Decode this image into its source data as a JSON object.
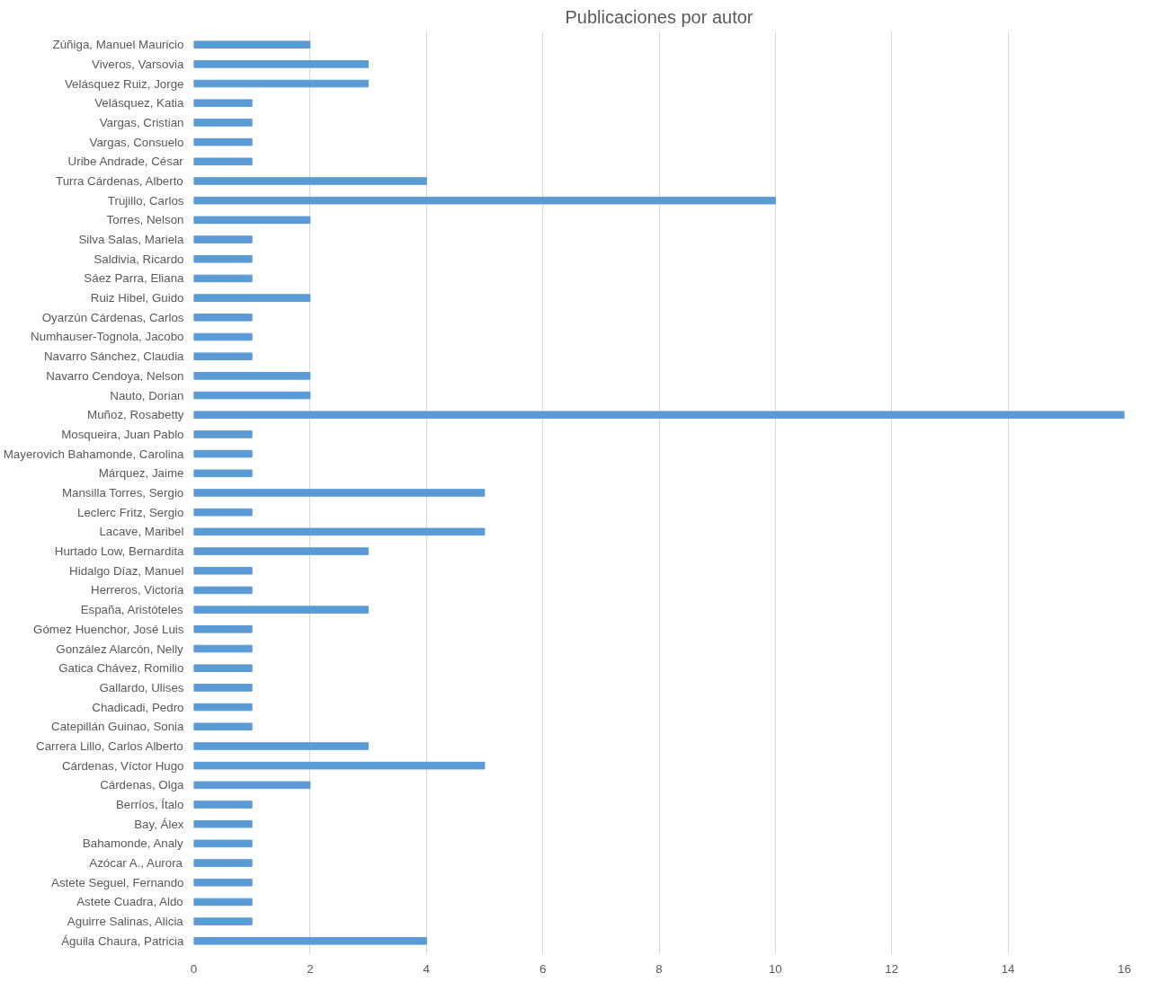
{
  "chart_data": {
    "type": "bar",
    "orientation": "horizontal",
    "title": "Publicaciones por autor",
    "categories": [
      "Zúñiga, Manuel Mauricio",
      "Viveros, Varsovia",
      "Velásquez Ruiz, Jorge",
      "Velásquez, Katia",
      "Vargas, Cristian",
      "Vargas, Consuelo",
      "Uribe Andrade, César",
      "Turra Cárdenas, Alberto",
      "Trujillo, Carlos",
      "Torres, Nelson",
      "Silva Salas, Mariela",
      "Saldivia, Ricardo",
      "Sáez Parra, Eliana",
      "Ruiz Hibel, Guido",
      "Oyarzún Cárdenas, Carlos",
      "Numhauser-Tognola, Jacobo",
      "Navarro Sánchez, Claudia",
      "Navarro Cendoya, Nelson",
      "Nauto, Dorian",
      "Muñoz, Rosabetty",
      "Mosqueira, Juan Pablo",
      "Mayerovich Bahamonde, Carolina",
      "Márquez, Jaime",
      "Mansilla Torres, Sergio",
      "Leclerc Fritz, Sergio",
      "Lacave, Maribel",
      "Hurtado Low, Bernardita",
      "Hidalgo Díaz, Manuel",
      "Herreros, Victoria",
      "España, Aristóteles",
      "Gómez Huenchor, José Luis",
      "González Alarcón, Nelly",
      "Gatica Chávez, Romilio",
      "Gallardo, Ulises",
      "Chadicadi, Pedro",
      "Catepillán Guinao, Sonia",
      "Carrera Lillo, Carlos Alberto",
      "Cárdenas, Víctor Hugo",
      "Cárdenas, Olga",
      "Berríos, Ítalo",
      "Bay, Álex",
      "Bahamonde, Analy",
      "Azócar A., Aurora",
      "Astete Seguel, Fernando",
      "Astete Cuadra, Aldo",
      "Aguirre Salinas, Alicia",
      "Águila Chaura, Patricia"
    ],
    "values": [
      2,
      3,
      3,
      1,
      1,
      1,
      1,
      4,
      10,
      2,
      1,
      1,
      1,
      2,
      1,
      1,
      1,
      2,
      2,
      16,
      1,
      1,
      1,
      5,
      1,
      5,
      3,
      1,
      1,
      3,
      1,
      1,
      1,
      1,
      1,
      1,
      3,
      5,
      2,
      1,
      1,
      1,
      1,
      1,
      1,
      1,
      4
    ],
    "color": "#5b9bd5",
    "xlim": [
      0,
      16
    ],
    "xticks": [
      0,
      2,
      4,
      6,
      8,
      10,
      12,
      14,
      16
    ],
    "grid": "x"
  }
}
